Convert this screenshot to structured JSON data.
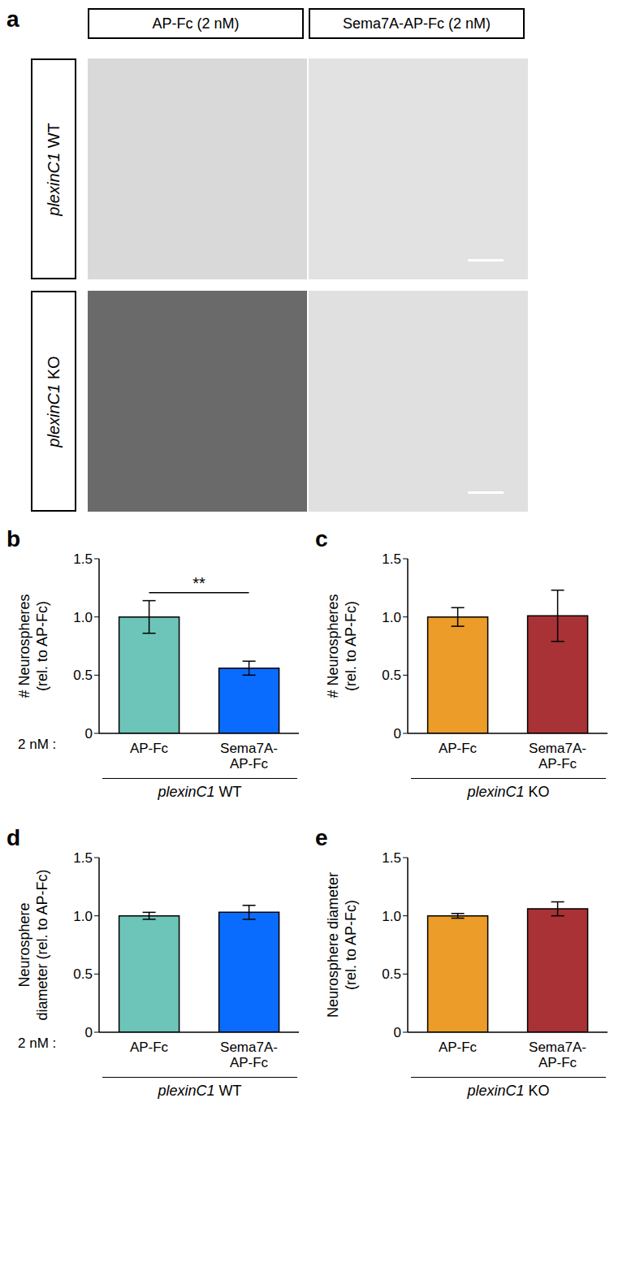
{
  "panel_a": {
    "label": "a",
    "columns": [
      "AP-Fc (2 nM)",
      "Sema7A-AP-Fc (2 nM)"
    ],
    "rows": [
      "plexinC1 WT",
      "plexinC1 KO"
    ]
  },
  "chart_data": [
    {
      "type": "bar",
      "title": "b",
      "categories": [
        "AP-Fc",
        "Sema7A-AP-Fc"
      ],
      "values": [
        1.0,
        0.56
      ],
      "errors": [
        0.14,
        0.06
      ],
      "colors": [
        "#6cc5b8",
        "#0a6cff"
      ],
      "ylim": [
        0,
        1.5
      ],
      "yticks": [
        0,
        0.5,
        {
          "value": 1,
          "label": "1.0"
        },
        1.5
      ],
      "y_label": [
        "# Neurospheres",
        "(rel. to AP-Fc)"
      ],
      "x_label": "plexinC1 WT",
      "annotations": [
        {
          "text": "**",
          "type": "significance",
          "from": "AP-Fc",
          "to": "Sema7A-AP-Fc"
        },
        {
          "text": "2 nM :",
          "type": "prefix"
        }
      ]
    },
    {
      "type": "bar",
      "title": "c",
      "categories": [
        "AP-Fc",
        "Sema7A-AP-Fc"
      ],
      "values": [
        1.0,
        1.01
      ],
      "errors": [
        0.08,
        0.22
      ],
      "colors": [
        "#ec9c28",
        "#a83236"
      ],
      "ylim": [
        0,
        1.5
      ],
      "yticks": [
        0,
        0.5,
        {
          "value": 1,
          "label": "1.0"
        },
        1.5
      ],
      "y_label": [
        "# Neurospheres",
        "(rel. to AP-Fc)"
      ],
      "x_label": "plexinC1 KO",
      "annotations": []
    },
    {
      "type": "bar",
      "title": "d",
      "categories": [
        "AP-Fc",
        "Sema7A-AP-Fc"
      ],
      "values": [
        1.0,
        1.03
      ],
      "errors": [
        0.03,
        0.06
      ],
      "colors": [
        "#6cc5b8",
        "#0a6cff"
      ],
      "ylim": [
        0,
        1.5
      ],
      "yticks": [
        0,
        0.5,
        {
          "value": 1,
          "label": "1.0"
        },
        1.5
      ],
      "y_label": [
        "Neurosphere",
        "diameter (rel. to AP-Fc)"
      ],
      "x_label": "plexinC1 WT",
      "annotations": [
        {
          "text": "2 nM :",
          "type": "prefix"
        }
      ]
    },
    {
      "type": "bar",
      "title": "e",
      "categories": [
        "AP-Fc",
        "Sema7A-AP-Fc"
      ],
      "values": [
        1.0,
        1.06
      ],
      "errors": [
        0.02,
        0.06
      ],
      "colors": [
        "#ec9c28",
        "#a83236"
      ],
      "ylim": [
        0,
        1.5
      ],
      "yticks": [
        0,
        0.5,
        {
          "value": 1,
          "label": "1.0"
        },
        1.5
      ],
      "y_label": [
        "Neurosphere diameter",
        "(rel. to AP-Fc)"
      ],
      "x_label": "plexinC1 KO",
      "annotations": []
    }
  ]
}
